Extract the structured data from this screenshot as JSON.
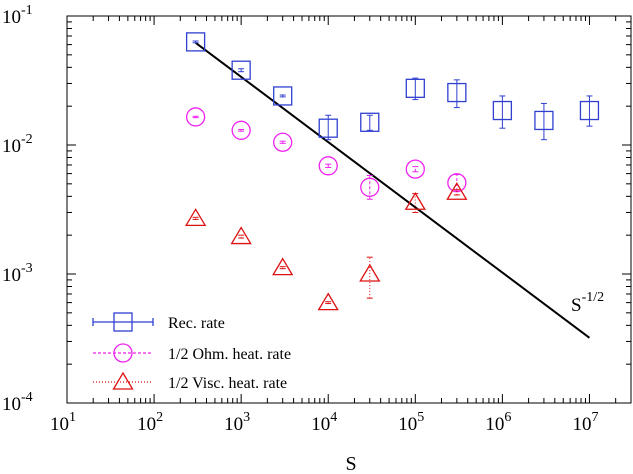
{
  "chart_data": {
    "type": "scatter",
    "x_scale": "log",
    "y_scale": "log",
    "xlim": [
      10,
      30000000
    ],
    "ylim": [
      0.0001,
      0.1
    ],
    "xlabel": "S",
    "ylabel": "",
    "x_ticks": [
      {
        "value": 10,
        "base": "10",
        "exp": "1"
      },
      {
        "value": 100,
        "base": "10",
        "exp": "2"
      },
      {
        "value": 1000,
        "base": "10",
        "exp": "3"
      },
      {
        "value": 10000,
        "base": "10",
        "exp": "4"
      },
      {
        "value": 100000,
        "base": "10",
        "exp": "5"
      },
      {
        "value": 1000000,
        "base": "10",
        "exp": "6"
      },
      {
        "value": 10000000,
        "base": "10",
        "exp": "7"
      }
    ],
    "y_ticks": [
      {
        "value": 0.0001,
        "base": "10",
        "exp": "-4"
      },
      {
        "value": 0.001,
        "base": "10",
        "exp": "-3"
      },
      {
        "value": 0.01,
        "base": "10",
        "exp": "-2"
      },
      {
        "value": 0.1,
        "base": "10",
        "exp": "-1"
      }
    ],
    "grid": false,
    "legend_position": "bottom-left",
    "series": [
      {
        "name": "Rec. rate",
        "marker": "square",
        "color": "#2f3fd0",
        "line_style": "solid",
        "points": [
          {
            "x": 300,
            "y": 0.063,
            "lo": 0.062,
            "hi": 0.064
          },
          {
            "x": 1000,
            "y": 0.038,
            "lo": 0.037,
            "hi": 0.039
          },
          {
            "x": 3000,
            "y": 0.024,
            "lo": 0.0236,
            "hi": 0.0244
          },
          {
            "x": 10000,
            "y": 0.0135,
            "lo": 0.011,
            "hi": 0.017
          },
          {
            "x": 30000,
            "y": 0.015,
            "lo": 0.013,
            "hi": 0.017
          },
          {
            "x": 100000,
            "y": 0.0275,
            "lo": 0.0225,
            "hi": 0.033
          },
          {
            "x": 300000,
            "y": 0.0255,
            "lo": 0.0195,
            "hi": 0.032
          },
          {
            "x": 1000000,
            "y": 0.0185,
            "lo": 0.0135,
            "hi": 0.024
          },
          {
            "x": 3000000,
            "y": 0.0155,
            "lo": 0.011,
            "hi": 0.021
          },
          {
            "x": 10000000,
            "y": 0.0185,
            "lo": 0.014,
            "hi": 0.024
          }
        ]
      },
      {
        "name": "1/2 Ohm. heat. rate",
        "marker": "circle",
        "color": "#ee22ee",
        "line_style": "dashed",
        "points": [
          {
            "x": 300,
            "y": 0.0165,
            "lo": 0.0163,
            "hi": 0.0167
          },
          {
            "x": 1000,
            "y": 0.013,
            "lo": 0.0128,
            "hi": 0.0132
          },
          {
            "x": 3000,
            "y": 0.0105,
            "lo": 0.0103,
            "hi": 0.0107
          },
          {
            "x": 10000,
            "y": 0.0069,
            "lo": 0.0067,
            "hi": 0.0071
          },
          {
            "x": 30000,
            "y": 0.0047,
            "lo": 0.0038,
            "hi": 0.0058
          },
          {
            "x": 100000,
            "y": 0.0065,
            "lo": 0.0062,
            "hi": 0.0068
          },
          {
            "x": 300000,
            "y": 0.0051,
            "lo": 0.0044,
            "hi": 0.0059
          }
        ]
      },
      {
        "name": "1/2 Visc. heat. rate",
        "marker": "triangle",
        "color": "#dd1111",
        "line_style": "dotted",
        "points": [
          {
            "x": 300,
            "y": 0.0027,
            "lo": 0.00265,
            "hi": 0.00275
          },
          {
            "x": 1000,
            "y": 0.00195,
            "lo": 0.0019,
            "hi": 0.002
          },
          {
            "x": 3000,
            "y": 0.00112,
            "lo": 0.0011,
            "hi": 0.00114
          },
          {
            "x": 10000,
            "y": 0.0006,
            "lo": 0.00059,
            "hi": 0.00061
          },
          {
            "x": 30000,
            "y": 0.001,
            "lo": 0.00065,
            "hi": 0.00135
          },
          {
            "x": 100000,
            "y": 0.0036,
            "lo": 0.003,
            "hi": 0.0042
          },
          {
            "x": 300000,
            "y": 0.0043,
            "lo": 0.0041,
            "hi": 0.0045
          }
        ]
      }
    ],
    "reference_line": {
      "label_base": "S",
      "label_exp": "-1/2",
      "x": [
        300,
        10000000
      ],
      "y": [
        0.062,
        0.00032
      ],
      "color": "#000000"
    }
  }
}
